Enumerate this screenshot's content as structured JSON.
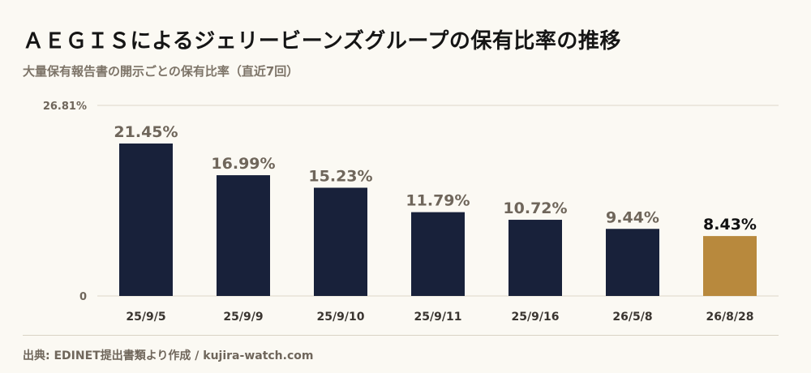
{
  "header": {
    "title": "ＡＥＧＩＳによるジェリービーンズグループの保有比率の推移",
    "subtitle": "大量保有報告書の開示ごとの保有比率（直近7回）"
  },
  "footer": {
    "source": "出典: EDINET提出書類より作成 / kujira-watch.com"
  },
  "colors": {
    "bar": "#18213a",
    "highlight": "#b8893d",
    "value_label": "#6f665b",
    "highlight_label": "#111111",
    "grid": "#ddd7c8"
  },
  "chart_data": {
    "type": "bar",
    "categories": [
      "25/9/5",
      "25/9/9",
      "25/9/10",
      "25/9/11",
      "25/9/16",
      "26/5/8",
      "26/8/28"
    ],
    "values": [
      21.45,
      16.99,
      15.23,
      11.79,
      10.72,
      9.44,
      8.43
    ],
    "value_labels": [
      "21.45%",
      "16.99%",
      "15.23%",
      "11.79%",
      "10.72%",
      "9.44%",
      "8.43%"
    ],
    "highlight_index": 6,
    "ylim": [
      0,
      26.81
    ],
    "y_tick_labels": [
      "0",
      "26.81%"
    ],
    "grid": true
  }
}
